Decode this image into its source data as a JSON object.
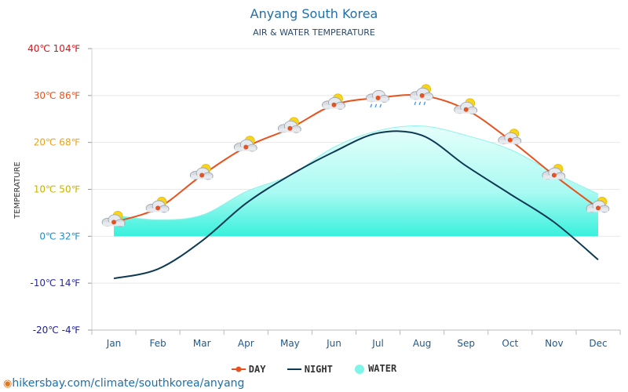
{
  "header": {
    "title": "Anyang South Korea",
    "subtitle": "AIR & WATER TEMPERATURE"
  },
  "footer": {
    "source": "hikersbay.com/climate/southkorea/anyang"
  },
  "legend": {
    "day": "DAY",
    "night": "NIGHT",
    "water": "WATER"
  },
  "colors": {
    "day": "#e8521e",
    "night": "#0d3a52",
    "water": "#7ff5ea",
    "grid": "#e8e8e8"
  },
  "chart_data": {
    "type": "line",
    "ylabel": "TEMPERATURE",
    "ylim": [
      -20,
      40
    ],
    "categories": [
      "Jan",
      "Feb",
      "Mar",
      "Apr",
      "May",
      "Jun",
      "Jul",
      "Aug",
      "Sep",
      "Oct",
      "Nov",
      "Dec"
    ],
    "y_ticks": [
      {
        "value": 40,
        "label": "40℃ 104℉",
        "color": "#d6131b"
      },
      {
        "value": 30,
        "label": "30℃ 86℉",
        "color": "#e8521e"
      },
      {
        "value": 20,
        "label": "20℃ 68℉",
        "color": "#e8a317"
      },
      {
        "value": 10,
        "label": "10℃ 50℉",
        "color": "#c8b400"
      },
      {
        "value": 0,
        "label": "0℃ 32℉",
        "color": "#1f8fc8"
      },
      {
        "value": -10,
        "label": "-10℃ 14℉",
        "color": "#2c2c9c"
      },
      {
        "value": -20,
        "label": "-20℃ -4℉",
        "color": "#1d1d9a"
      }
    ],
    "series": [
      {
        "name": "DAY",
        "values": [
          3,
          6,
          13,
          19,
          23,
          28,
          29.5,
          30,
          27,
          20.5,
          13,
          6
        ]
      },
      {
        "name": "NIGHT",
        "values": [
          -9,
          -7,
          -1,
          7,
          13,
          18,
          22,
          21.5,
          15,
          9,
          3,
          -5
        ]
      },
      {
        "name": "WATER",
        "values": [
          4.5,
          3.5,
          4.5,
          9.5,
          13,
          19,
          22.5,
          23.5,
          21.5,
          18.5,
          13.5,
          9
        ]
      }
    ],
    "weather_icons": [
      "partly-cloudy",
      "partly-cloudy",
      "partly-cloudy",
      "partly-cloudy",
      "partly-cloudy",
      "partly-cloudy",
      "rain",
      "rain-sun",
      "partly-cloudy",
      "partly-cloudy",
      "partly-cloudy",
      "partly-cloudy"
    ]
  }
}
